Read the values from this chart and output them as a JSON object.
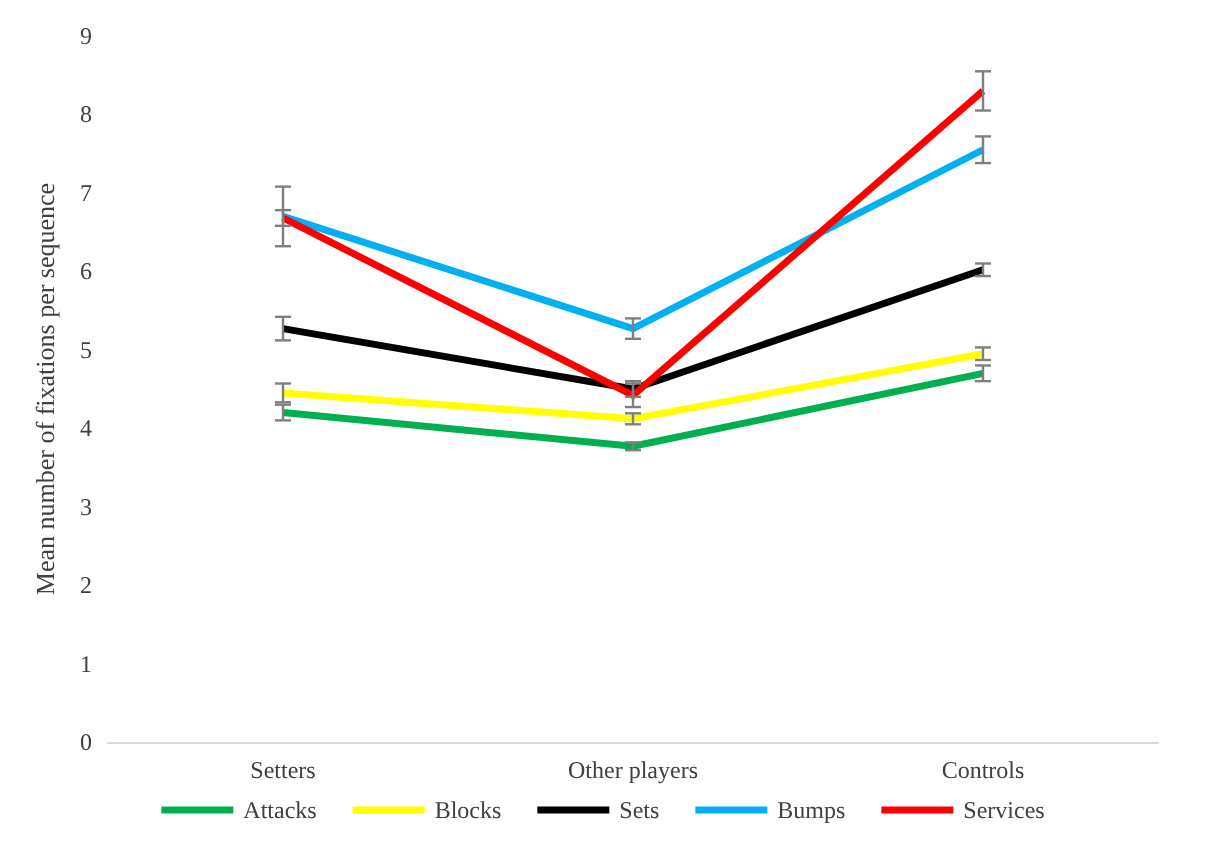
{
  "chart_data": {
    "type": "line",
    "ylabel": "Mean number of fixations per sequence",
    "categories": [
      "Setters",
      "Other players",
      "Controls"
    ],
    "ylim": [
      0,
      9
    ],
    "yticks": [
      0,
      1,
      2,
      3,
      4,
      5,
      6,
      7,
      8,
      9
    ],
    "grid": false,
    "legend": "bottom",
    "marker": "none",
    "series": [
      {
        "name": "Attacks",
        "color": "#00b050",
        "values": [
          4.2,
          3.77,
          4.7
        ],
        "errors": [
          0.1,
          0.05,
          0.1
        ]
      },
      {
        "name": "Blocks",
        "color": "#ffff00",
        "values": [
          4.45,
          4.12,
          4.95
        ],
        "errors": [
          0.12,
          0.07,
          0.08
        ]
      },
      {
        "name": "Sets",
        "color": "#000000",
        "values": [
          5.27,
          4.5,
          6.02
        ],
        "errors": [
          0.15,
          0.1,
          0.08
        ]
      },
      {
        "name": "Bumps",
        "color": "#00b0f0",
        "values": [
          6.7,
          5.27,
          7.55
        ],
        "errors": [
          0.38,
          0.13,
          0.17
        ]
      },
      {
        "name": "Services",
        "color": "#ff0000",
        "values": [
          6.68,
          4.42,
          8.3
        ],
        "errors": [
          0.1,
          0.15,
          0.25
        ]
      }
    ]
  }
}
